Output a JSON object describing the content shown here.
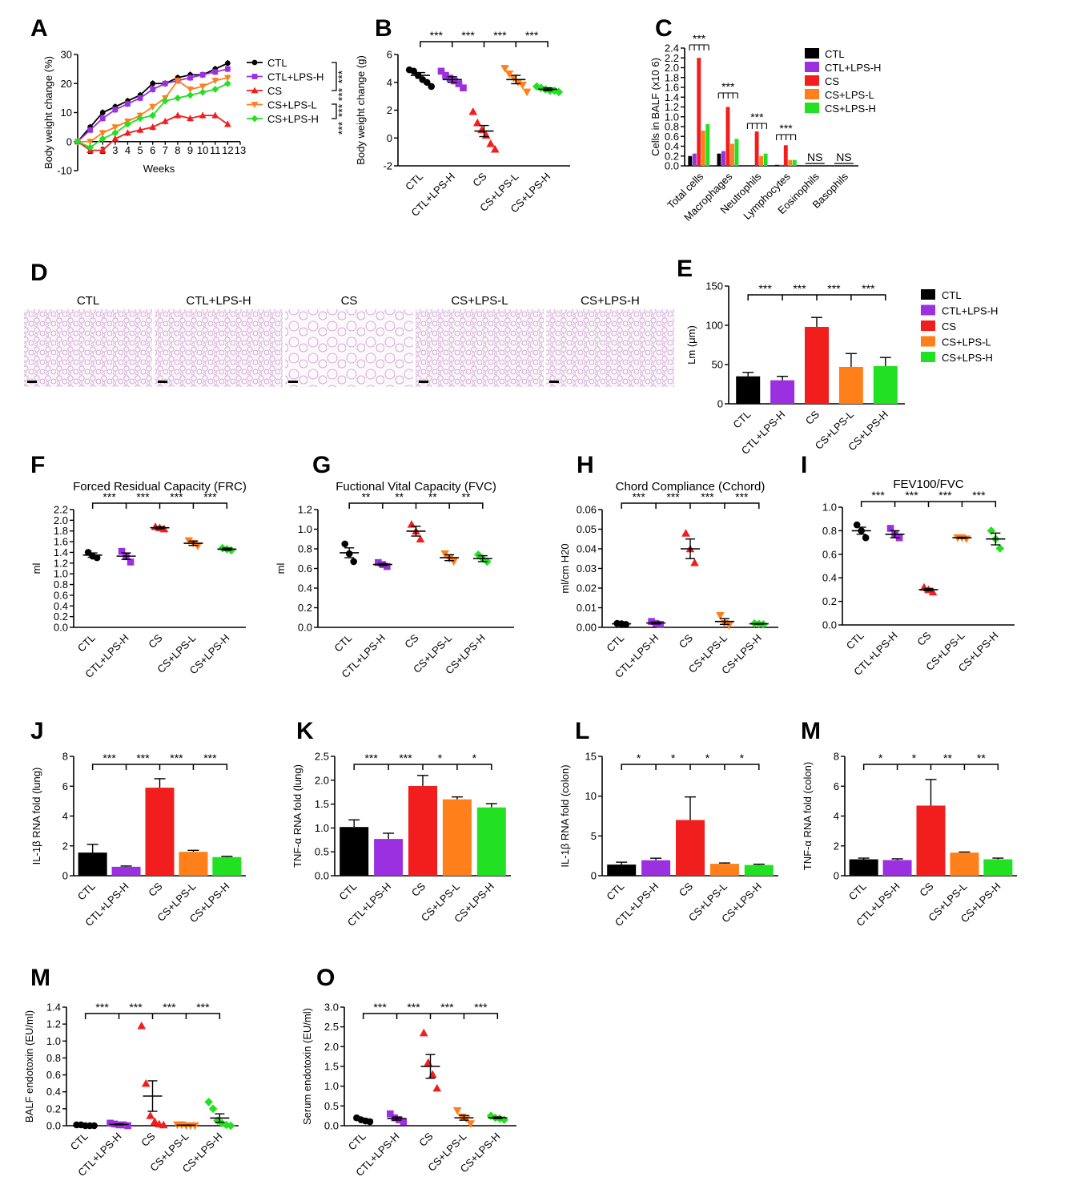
{
  "colors": {
    "CTL": "#000000",
    "CTL+LPS-H": "#9b30e0",
    "CS": "#f21d1d",
    "CS+LPS-L": "#ff7f1a",
    "CS+LPS-H": "#22e022"
  },
  "groups": [
    "CTL",
    "CTL+LPS-H",
    "CS",
    "CS+LPS-L",
    "CS+LPS-H"
  ],
  "chart_data": [
    {
      "id": "A",
      "panel_label": "A",
      "type": "line",
      "xlabel": "Weeks",
      "ylabel": "Body weight change (%)",
      "xlim": [
        0,
        13
      ],
      "ylim": [
        -10,
        30
      ],
      "xticks": [
        "1",
        "2",
        "3",
        "4",
        "5",
        "6",
        "7",
        "8",
        "9",
        "10",
        "11",
        "12",
        "13"
      ],
      "yticks": [
        "-10",
        "0",
        "10",
        "20",
        "30"
      ],
      "x": [
        0,
        1,
        2,
        3,
        4,
        5,
        6,
        7,
        8,
        9,
        10,
        11,
        12
      ],
      "series": [
        {
          "name": "CTL",
          "values": [
            0,
            5,
            10,
            12,
            14,
            16,
            20,
            20,
            22,
            23,
            23,
            25,
            27
          ]
        },
        {
          "name": "CTL+LPS-H",
          "values": [
            0,
            4,
            8,
            11,
            13,
            15,
            18,
            20,
            21,
            22,
            23,
            24,
            25
          ]
        },
        {
          "name": "CS",
          "values": [
            0,
            -3,
            -3,
            1,
            3,
            4,
            5,
            7,
            9,
            8,
            9,
            9,
            6
          ]
        },
        {
          "name": "CS+LPS-L",
          "values": [
            0,
            0,
            3,
            5,
            7,
            9,
            12,
            15,
            21,
            18,
            19,
            21,
            22
          ]
        },
        {
          "name": "CS+LPS-H",
          "values": [
            0,
            -2,
            1,
            3,
            6,
            8,
            9,
            14,
            15,
            16,
            17,
            18,
            20
          ]
        }
      ],
      "significance": [
        "***",
        "***",
        "***",
        "***"
      ]
    },
    {
      "id": "B",
      "panel_label": "B",
      "type": "scatter",
      "ylabel": "Body weight change (g)",
      "ylim": [
        -2,
        6
      ],
      "yticks": [
        "-2",
        "0",
        "2",
        "4",
        "6"
      ],
      "categories": [
        "CTL",
        "CTL+LPS-H",
        "CS",
        "CS+LPS-L",
        "CS+LPS-H"
      ],
      "points": [
        [
          4.9,
          4.8,
          4.5,
          4.2,
          4.0,
          3.7
        ],
        [
          4.8,
          4.5,
          4.3,
          4.1,
          3.9,
          3.6
        ],
        [
          1.9,
          1.1,
          0.6,
          0.2,
          -0.4,
          -0.8
        ],
        [
          5.0,
          4.6,
          4.3,
          4.0,
          3.8,
          3.3
        ],
        [
          3.7,
          3.6,
          3.5,
          3.4,
          3.4,
          3.3
        ]
      ],
      "means": [
        4.5,
        4.2,
        0.5,
        4.2,
        3.5
      ],
      "sem": [
        0.2,
        0.2,
        0.4,
        0.3,
        0.1
      ],
      "significance": [
        "***",
        "***",
        "***",
        "***"
      ]
    },
    {
      "id": "C",
      "panel_label": "C",
      "type": "bar",
      "ylabel": "Cells in BALF (x10 6)",
      "ylim": [
        0,
        2.4
      ],
      "yticks": [
        "0.0",
        "0.2",
        "0.4",
        "0.6",
        "0.8",
        "1.0",
        "1.2",
        "1.4",
        "1.6",
        "1.8",
        "2.0",
        "2.2",
        "2.4"
      ],
      "categories": [
        "Total cells",
        "Macrophages",
        "Neutrophils",
        "Lymphocytes",
        "Eosinophils",
        "Basophils"
      ],
      "series": [
        {
          "name": "CTL",
          "values": [
            0.2,
            0.25,
            0.0,
            0.02,
            0.0,
            0.0
          ]
        },
        {
          "name": "CTL+LPS-H",
          "values": [
            0.25,
            0.3,
            0.0,
            0.02,
            0.0,
            0.0
          ]
        },
        {
          "name": "CS",
          "values": [
            2.2,
            1.2,
            0.7,
            0.42,
            0.0,
            0.0
          ]
        },
        {
          "name": "CS+LPS-L",
          "values": [
            0.72,
            0.45,
            0.2,
            0.12,
            0.0,
            0.0
          ]
        },
        {
          "name": "CS+LPS-H",
          "values": [
            0.85,
            0.55,
            0.25,
            0.12,
            0.0,
            0.0
          ]
        }
      ],
      "annotations": [
        "***",
        "***",
        "***",
        "***",
        "NS",
        "NS"
      ]
    },
    {
      "id": "E",
      "panel_label": "E",
      "type": "bar",
      "ylabel": "Lm (μm)",
      "ylim": [
        0,
        150
      ],
      "yticks": [
        "0",
        "50",
        "100",
        "150"
      ],
      "categories": [
        "CTL",
        "CTL+LPS-H",
        "CS",
        "CS+LPS-L",
        "CS+LPS-H"
      ],
      "values": [
        35,
        30,
        98,
        47,
        48
      ],
      "sem": [
        5,
        5,
        12,
        17,
        11
      ],
      "significance": [
        "***",
        "***",
        "***",
        "***"
      ]
    },
    {
      "id": "F",
      "panel_label": "F",
      "type": "scatter",
      "title": "Forced Residual Capacity (FRC)",
      "ylabel": "ml",
      "ylim": [
        0,
        2.2
      ],
      "yticks": [
        "0.0",
        "0.2",
        "0.4",
        "0.6",
        "0.8",
        "1.0",
        "1.2",
        "1.4",
        "1.6",
        "1.8",
        "2.0",
        "2.2"
      ],
      "categories": [
        "CTL",
        "CTL+LPS-H",
        "CS",
        "CS+LPS-L",
        "CS+LPS-H"
      ],
      "points": [
        [
          1.4,
          1.33,
          1.3
        ],
        [
          1.42,
          1.32,
          1.22
        ],
        [
          1.88,
          1.86,
          1.84
        ],
        [
          1.62,
          1.57,
          1.52
        ],
        [
          1.48,
          1.46,
          1.44
        ]
      ],
      "means": [
        1.35,
        1.33,
        1.86,
        1.57,
        1.46
      ],
      "sem": [
        0.04,
        0.06,
        0.02,
        0.04,
        0.02
      ],
      "significance": [
        "***",
        "***",
        "***",
        "***"
      ]
    },
    {
      "id": "G",
      "panel_label": "G",
      "type": "scatter",
      "title": "Fuctional  Vital Capacity (FVC)",
      "ylabel": "ml",
      "ylim": [
        0,
        1.2
      ],
      "yticks": [
        "0.0",
        "0.2",
        "0.4",
        "0.6",
        "0.8",
        "1.0",
        "1.2"
      ],
      "categories": [
        "CTL",
        "CTL+LPS-H",
        "CS",
        "CS+LPS-L",
        "CS+LPS-H"
      ],
      "points": [
        [
          0.85,
          0.75,
          0.67
        ],
        [
          0.66,
          0.64,
          0.62
        ],
        [
          1.05,
          0.98,
          0.9
        ],
        [
          0.75,
          0.7,
          0.67
        ],
        [
          0.74,
          0.7,
          0.67
        ]
      ],
      "means": [
        0.76,
        0.64,
        0.98,
        0.71,
        0.7
      ],
      "sem": [
        0.05,
        0.01,
        0.05,
        0.03,
        0.03
      ],
      "significance": [
        "**",
        "**",
        "**",
        "**"
      ]
    },
    {
      "id": "H",
      "panel_label": "H",
      "type": "scatter",
      "title": "Chord Compliance (Cchord)",
      "ylabel": "ml/cm H20",
      "ylim": [
        0,
        0.06
      ],
      "yticks": [
        "0.00",
        "0.01",
        "0.02",
        "0.03",
        "0.04",
        "0.05",
        "0.06"
      ],
      "categories": [
        "CTL",
        "CTL+LPS-H",
        "CS",
        "CS+LPS-L",
        "CS+LPS-H"
      ],
      "points": [
        [
          0.002,
          0.0018,
          0.0015
        ],
        [
          0.003,
          0.002,
          0.0015
        ],
        [
          0.048,
          0.04,
          0.033
        ],
        [
          0.006,
          0.002,
          0.001
        ],
        [
          0.002,
          0.0018,
          0.0015
        ]
      ],
      "means": [
        0.0018,
        0.0022,
        0.04,
        0.003,
        0.0018
      ],
      "sem": [
        0.0002,
        0.0005,
        0.005,
        0.0015,
        0.0002
      ],
      "significance": [
        "***",
        "***",
        "***",
        "***"
      ]
    },
    {
      "id": "I",
      "panel_label": "I",
      "type": "scatter",
      "title": "FEV100/FVC",
      "ylim": [
        0,
        1.0
      ],
      "yticks": [
        "0.0",
        "0.2",
        "0.4",
        "0.6",
        "0.8",
        "1.0"
      ],
      "categories": [
        "CTL",
        "CTL+LPS-H",
        "CS",
        "CS+LPS-L",
        "CS+LPS-H"
      ],
      "points": [
        [
          0.85,
          0.8,
          0.74
        ],
        [
          0.82,
          0.77,
          0.74
        ],
        [
          0.32,
          0.3,
          0.28
        ],
        [
          0.74,
          0.74,
          0.73
        ],
        [
          0.8,
          0.73,
          0.65
        ]
      ],
      "means": [
        0.8,
        0.77,
        0.3,
        0.74,
        0.73
      ],
      "sem": [
        0.03,
        0.03,
        0.01,
        0.005,
        0.05
      ],
      "significance": [
        "***",
        "***",
        "***",
        "***"
      ]
    },
    {
      "id": "J",
      "panel_label": "J",
      "type": "bar",
      "ylabel": "IL-1β RNA fold (lung)",
      "ylim": [
        0,
        8
      ],
      "yticks": [
        "0",
        "2",
        "4",
        "6",
        "8"
      ],
      "categories": [
        "CTL",
        "CTL+LPS-H",
        "CS",
        "CS+LPS-L",
        "CS+LPS-H"
      ],
      "values": [
        1.55,
        0.6,
        5.9,
        1.6,
        1.25
      ],
      "sem": [
        0.55,
        0.05,
        0.6,
        0.1,
        0.05
      ],
      "significance": [
        "***",
        "***",
        "***",
        "***"
      ]
    },
    {
      "id": "K",
      "panel_label": "K",
      "type": "bar",
      "ylabel": "TNF-α RNA fold (lung)",
      "ylim": [
        0,
        2.5
      ],
      "yticks": [
        "0.0",
        "0.5",
        "1.0",
        "1.5",
        "2.0",
        "2.5"
      ],
      "categories": [
        "CTL",
        "CTL+LPS-H",
        "CS",
        "CS+LPS-L",
        "CS+LPS-H"
      ],
      "values": [
        1.02,
        0.77,
        1.88,
        1.6,
        1.43
      ],
      "sem": [
        0.15,
        0.12,
        0.22,
        0.05,
        0.08
      ],
      "significance": [
        "***",
        "***",
        "*",
        "*"
      ]
    },
    {
      "id": "L",
      "panel_label": "L",
      "type": "bar",
      "ylabel": "IL-1β RNA fold (colon)",
      "ylim": [
        0,
        15
      ],
      "yticks": [
        "0",
        "5",
        "10",
        "15"
      ],
      "categories": [
        "CTL",
        "CTL+LPS-H",
        "CS",
        "CS+LPS-L",
        "CS+LPS-H"
      ],
      "values": [
        1.4,
        1.95,
        7.0,
        1.5,
        1.35
      ],
      "sem": [
        0.3,
        0.25,
        2.9,
        0.1,
        0.1
      ],
      "significance": [
        "*",
        "*",
        "*",
        "*"
      ]
    },
    {
      "id": "M1",
      "panel_label": "M",
      "type": "bar",
      "ylabel": "TNF-α RNA fold (colon)",
      "ylim": [
        0,
        8
      ],
      "yticks": [
        "0",
        "2",
        "4",
        "6",
        "8"
      ],
      "categories": [
        "CTL",
        "CTL+LPS-H",
        "CS",
        "CS+LPS-L",
        "CS+LPS-H"
      ],
      "values": [
        1.1,
        1.05,
        4.7,
        1.55,
        1.1
      ],
      "sem": [
        0.08,
        0.08,
        1.75,
        0.04,
        0.08
      ],
      "significance": [
        "*",
        "*",
        "**",
        "**"
      ]
    },
    {
      "id": "M2",
      "panel_label": "M",
      "type": "scatter",
      "ylabel": "BALF endotoxin (EU/ml)",
      "ylim": [
        0,
        1.4
      ],
      "yticks": [
        "0.0",
        "0.2",
        "0.4",
        "0.6",
        "0.8",
        "1.0",
        "1.2",
        "1.4"
      ],
      "categories": [
        "CTL",
        "CTL+LPS-H",
        "CS",
        "CS+LPS-L",
        "CS+LPS-H"
      ],
      "points": [
        [
          0.01,
          0.01,
          0.0,
          0.0,
          0.0
        ],
        [
          0.03,
          0.02,
          0.01,
          0.01,
          0.0
        ],
        [
          1.18,
          0.5,
          0.12,
          0.05,
          0.02,
          0.01
        ],
        [
          0.01,
          0.01,
          0.0,
          0.0,
          0.0
        ],
        [
          0.28,
          0.2,
          0.06,
          0.03,
          0.01,
          0.0
        ]
      ],
      "means": [
        0.005,
        0.015,
        0.35,
        0.005,
        0.09
      ],
      "sem": [
        0.002,
        0.005,
        0.18,
        0.002,
        0.05
      ],
      "significance": [
        "***",
        "***",
        "***",
        "***"
      ]
    },
    {
      "id": "O",
      "panel_label": "O",
      "type": "scatter",
      "ylabel": "Serum endotoxin (EU/ml)",
      "ylim": [
        0,
        3.0
      ],
      "yticks": [
        "0.0",
        "0.5",
        "1.0",
        "1.5",
        "2.0",
        "2.5",
        "3.0"
      ],
      "categories": [
        "CTL",
        "CTL+LPS-H",
        "CS",
        "CS+LPS-L",
        "CS+LPS-H"
      ],
      "points": [
        [
          0.2,
          0.15,
          0.12,
          0.1
        ],
        [
          0.3,
          0.2,
          0.15,
          0.1
        ],
        [
          2.35,
          1.6,
          1.3,
          0.95
        ],
        [
          0.38,
          0.22,
          0.18,
          0.05
        ],
        [
          0.25,
          0.2,
          0.18,
          0.15
        ]
      ],
      "means": [
        0.15,
        0.18,
        1.5,
        0.2,
        0.2
      ],
      "sem": [
        0.03,
        0.04,
        0.3,
        0.06,
        0.02
      ],
      "significance": [
        "***",
        "***",
        "***",
        "***"
      ]
    }
  ],
  "panel_D": {
    "label": "D",
    "images": [
      {
        "caption": "CTL",
        "texture": "dense-alveoli"
      },
      {
        "caption": "CTL+LPS-H",
        "texture": "dense-alveoli"
      },
      {
        "caption": "CS",
        "texture": "enlarged-airspaces"
      },
      {
        "caption": "CS+LPS-L",
        "texture": "dense-alveoli"
      },
      {
        "caption": "CS+LPS-H",
        "texture": "dense-alveoli"
      }
    ]
  }
}
